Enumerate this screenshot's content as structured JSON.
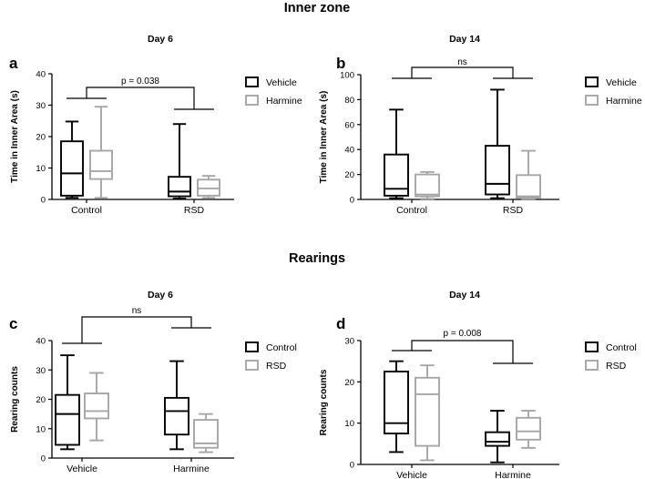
{
  "figure": {
    "section_top": "Inner zone",
    "section_bottom": "Rearings"
  },
  "colors": {
    "vehicle_or_control": "#000000",
    "harmine_or_rsd": "#a6a6a6"
  },
  "chart_data": [
    {
      "type": "boxplot",
      "panel": "a",
      "title": "Day 6",
      "ylabel": "Time in Inner Area (s)",
      "ylim": [
        0,
        40
      ],
      "yticks": [
        0,
        10,
        20,
        30,
        40
      ],
      "categories": [
        "Control",
        "RSD"
      ],
      "legend": [
        "Vehicle",
        "Harmine"
      ],
      "annotation": "p = 0.038",
      "series": [
        {
          "name": "Vehicle",
          "boxes": [
            {
              "min": 0.5,
              "q1": 1.2,
              "median": 8.3,
              "q3": 18.5,
              "max": 24.8
            },
            {
              "min": 0.3,
              "q1": 1.0,
              "median": 2.5,
              "q3": 7.2,
              "max": 24.0
            }
          ]
        },
        {
          "name": "Harmine",
          "boxes": [
            {
              "min": 0.5,
              "q1": 6.5,
              "median": 9.0,
              "q3": 15.5,
              "max": 29.5
            },
            {
              "min": 0.5,
              "q1": 1.2,
              "median": 3.5,
              "q3": 6.3,
              "max": 7.5
            }
          ]
        }
      ]
    },
    {
      "type": "boxplot",
      "panel": "b",
      "title": "Day 14",
      "ylabel": "Time in Inner Area (s)",
      "ylim": [
        0,
        100
      ],
      "yticks": [
        0,
        20,
        40,
        60,
        80,
        100
      ],
      "categories": [
        "Control",
        "RSD"
      ],
      "legend": [
        "Vehicle",
        "Harmine"
      ],
      "annotation": "ns",
      "series": [
        {
          "name": "Vehicle",
          "boxes": [
            {
              "min": 1,
              "q1": 3,
              "median": 8.5,
              "q3": 36,
              "max": 72
            },
            {
              "min": 1,
              "q1": 4,
              "median": 12.5,
              "q3": 43,
              "max": 88
            }
          ]
        },
        {
          "name": "Harmine",
          "boxes": [
            {
              "min": 0.5,
              "q1": 2.5,
              "median": 4,
              "q3": 20,
              "max": 22
            },
            {
              "min": 0.5,
              "q1": 1.2,
              "median": 2.5,
              "q3": 19.5,
              "max": 39
            }
          ]
        }
      ]
    },
    {
      "type": "boxplot",
      "panel": "c",
      "title": "Day 6",
      "ylabel": "Rearing counts",
      "ylim": [
        0,
        40
      ],
      "yticks": [
        0,
        10,
        20,
        30,
        40
      ],
      "categories": [
        "Vehicle",
        "Harmine"
      ],
      "legend": [
        "Control",
        "RSD"
      ],
      "annotation": "ns",
      "series": [
        {
          "name": "Control",
          "boxes": [
            {
              "min": 3,
              "q1": 4.5,
              "median": 15,
              "q3": 21.5,
              "max": 35
            },
            {
              "min": 3,
              "q1": 8,
              "median": 16,
              "q3": 20.5,
              "max": 33
            }
          ]
        },
        {
          "name": "RSD",
          "boxes": [
            {
              "min": 6,
              "q1": 13.5,
              "median": 16,
              "q3": 22,
              "max": 29
            },
            {
              "min": 2,
              "q1": 3.5,
              "median": 5,
              "q3": 13,
              "max": 15
            }
          ]
        }
      ]
    },
    {
      "type": "boxplot",
      "panel": "d",
      "title": "Day 14",
      "ylabel": "Rearing counts",
      "ylim": [
        0,
        30
      ],
      "yticks": [
        0,
        10,
        20,
        30
      ],
      "categories": [
        "Vehicle",
        "Harmine"
      ],
      "legend": [
        "Control",
        "RSD"
      ],
      "annotation": "p = 0.008",
      "series": [
        {
          "name": "Control",
          "boxes": [
            {
              "min": 3,
              "q1": 7.5,
              "median": 10,
              "q3": 22.5,
              "max": 25
            },
            {
              "min": 0.5,
              "q1": 4.5,
              "median": 5.5,
              "q3": 7.8,
              "max": 13
            }
          ]
        },
        {
          "name": "RSD",
          "boxes": [
            {
              "min": 1,
              "q1": 4.5,
              "median": 17,
              "q3": 21,
              "max": 24
            },
            {
              "min": 4,
              "q1": 6,
              "median": 8,
              "q3": 11.3,
              "max": 13
            }
          ]
        }
      ]
    }
  ]
}
